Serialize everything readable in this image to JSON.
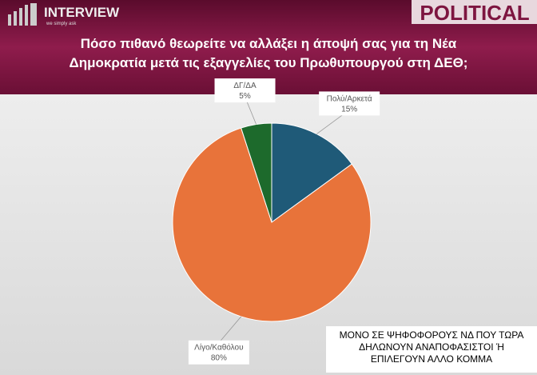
{
  "header": {
    "logo": "INTERVIEW",
    "tagline": "we simply ask",
    "brand": "POLITICAL"
  },
  "chart_data": {
    "type": "pie",
    "title": [
      "Πόσο πιθανό θεωρείτε να αλλάξει η άποψή σας για τη Νέα",
      "Δημοκρατία μετά τις εξαγγελίες του Πρωθυπουργού στη ΔΕΘ;"
    ],
    "categories": [
      "Πολύ/Αρκετά",
      "Λίγο/Καθόλου",
      "ΔΓ/ΔΑ"
    ],
    "values": [
      15,
      80,
      5
    ],
    "value_labels": [
      "15%",
      "80%",
      "5%"
    ],
    "colors": [
      "#1f5a78",
      "#e8733a",
      "#1d6a2c"
    ],
    "note": [
      "ΜΟΝΟ ΣΕ ΨΗΦΟΦΟΡΟΥΣ ΝΔ ΠΟΥ ΤΩΡΑ",
      "ΔΗΛΩΝΟΥΝ ΑΝΑΠΟΦΑΣΙΣΤΟΙ Ή",
      "ΕΠΙΛΕΓΟΥΝ ΑΛΛΟ ΚΟΜΜΑ"
    ]
  }
}
